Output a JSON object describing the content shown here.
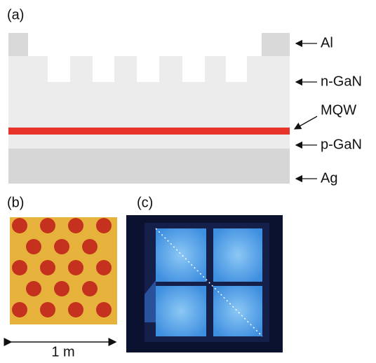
{
  "panels": {
    "a": {
      "label": "(a)",
      "layers": [
        "Al",
        "n-GaN",
        "MQW",
        "p-GaN",
        "Ag"
      ]
    },
    "b": {
      "label": "(b)",
      "scale": "1 m"
    },
    "c": {
      "label": "(c)"
    }
  }
}
